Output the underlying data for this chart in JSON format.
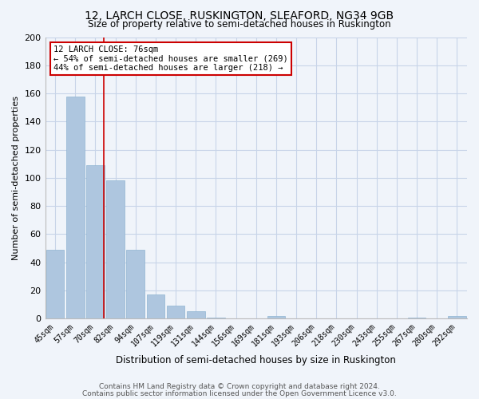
{
  "title": "12, LARCH CLOSE, RUSKINGTON, SLEAFORD, NG34 9GB",
  "subtitle": "Size of property relative to semi-detached houses in Ruskington",
  "xlabel": "Distribution of semi-detached houses by size in Ruskington",
  "ylabel": "Number of semi-detached properties",
  "bins": [
    "45sqm",
    "57sqm",
    "70sqm",
    "82sqm",
    "94sqm",
    "107sqm",
    "119sqm",
    "131sqm",
    "144sqm",
    "156sqm",
    "169sqm",
    "181sqm",
    "193sqm",
    "206sqm",
    "218sqm",
    "230sqm",
    "243sqm",
    "255sqm",
    "267sqm",
    "280sqm",
    "292sqm"
  ],
  "values": [
    49,
    158,
    109,
    98,
    49,
    17,
    9,
    5,
    1,
    0,
    0,
    2,
    0,
    0,
    0,
    0,
    0,
    0,
    1,
    0,
    2
  ],
  "bar_color": "#aec6df",
  "bar_edge_color": "#90b4d2",
  "marker_color": "#cc0000",
  "ylim": [
    0,
    200
  ],
  "yticks": [
    0,
    20,
    40,
    60,
    80,
    100,
    120,
    140,
    160,
    180,
    200
  ],
  "annotation_title": "12 LARCH CLOSE: 76sqm",
  "annotation_line1": "← 54% of semi-detached houses are smaller (269)",
  "annotation_line2": "44% of semi-detached houses are larger (218) →",
  "annotation_box_color": "#cc0000",
  "footer1": "Contains HM Land Registry data © Crown copyright and database right 2024.",
  "footer2": "Contains public sector information licensed under the Open Government Licence v3.0.",
  "bg_color": "#f0f4fa",
  "grid_color": "#c8d4e8"
}
